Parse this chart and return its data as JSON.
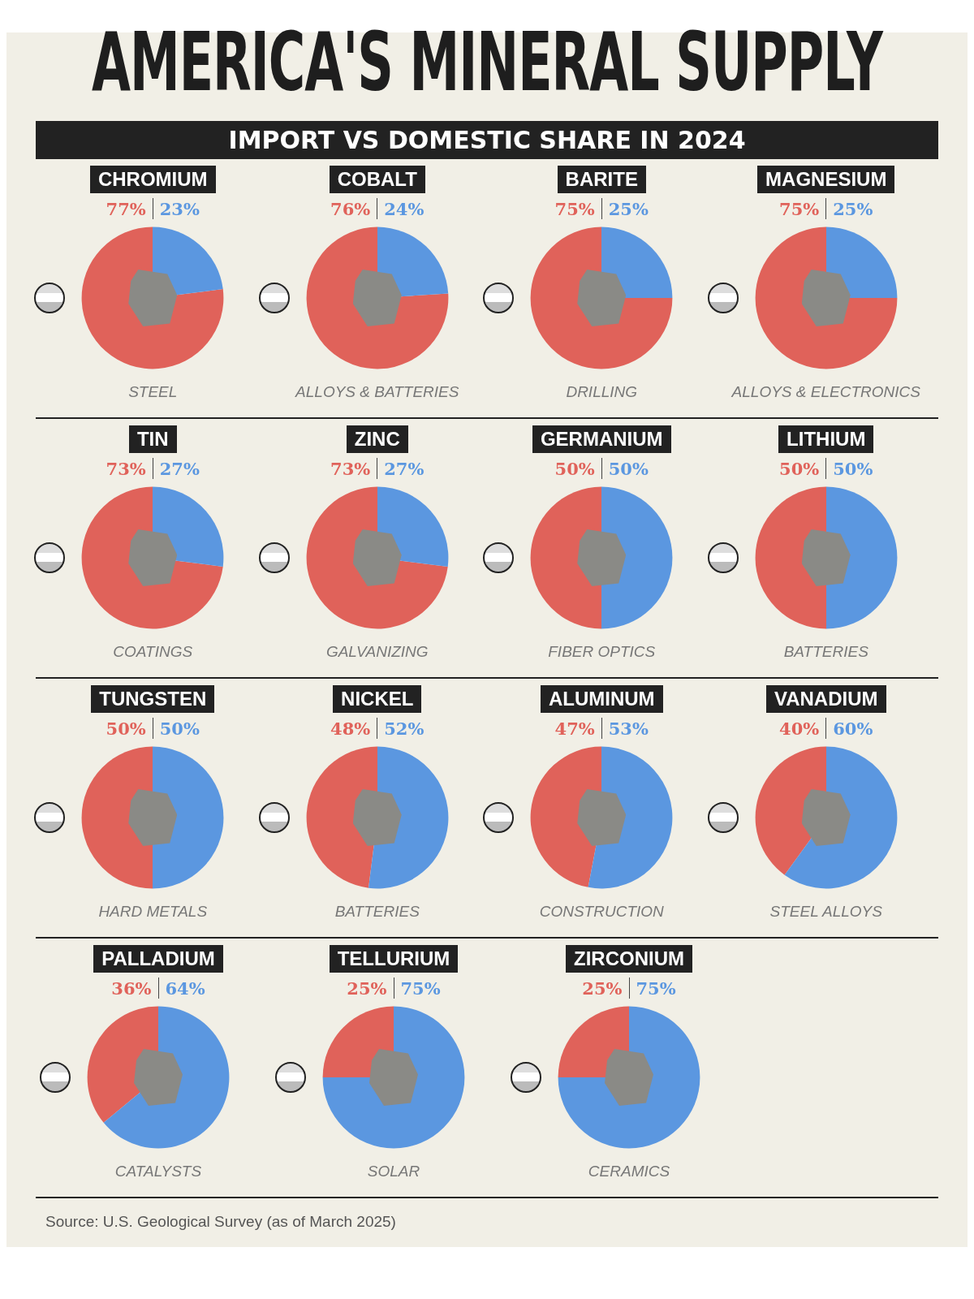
{
  "chart_data": [
    {
      "type": "other",
      "title": "AMERICA'S MINERAL SUPPLY",
      "subtitle": "IMPORT VS DOMESTIC SHARE IN 2024",
      "annotations": [
        "Source: U.S. Geological Survey (as of March 2025)"
      ]
    },
    {
      "type": "pie",
      "title": "CHROMIUM",
      "subtitle": "STEEL",
      "categories": [
        null,
        null
      ],
      "values": [
        77,
        23
      ],
      "value_labels": [
        "77%",
        "23%"
      ],
      "colors": [
        "#e0625a",
        "#5b97e0"
      ]
    },
    {
      "type": "pie",
      "title": "COBALT",
      "subtitle": "ALLOYS & BATTERIES",
      "categories": [
        null,
        null
      ],
      "values": [
        76,
        24
      ],
      "value_labels": [
        "76%",
        "24%"
      ],
      "colors": [
        "#e0625a",
        "#5b97e0"
      ]
    },
    {
      "type": "pie",
      "title": "BARITE",
      "subtitle": "DRILLING",
      "categories": [
        null,
        null
      ],
      "values": [
        75,
        25
      ],
      "value_labels": [
        "75%",
        "25%"
      ],
      "colors": [
        "#e0625a",
        "#5b97e0"
      ]
    },
    {
      "type": "pie",
      "title": "MAGNESIUM",
      "subtitle": "ALLOYS & ELECTRONICS",
      "categories": [
        null,
        null
      ],
      "values": [
        75,
        25
      ],
      "value_labels": [
        "75%",
        "25%"
      ],
      "colors": [
        "#e0625a",
        "#5b97e0"
      ]
    },
    {
      "type": "pie",
      "title": "TIN",
      "subtitle": "COATINGS",
      "categories": [
        null,
        null
      ],
      "values": [
        73,
        27
      ],
      "value_labels": [
        "73%",
        "27%"
      ],
      "colors": [
        "#e0625a",
        "#5b97e0"
      ]
    },
    {
      "type": "pie",
      "title": "ZINC",
      "subtitle": "GALVANIZING",
      "categories": [
        null,
        null
      ],
      "values": [
        73,
        27
      ],
      "value_labels": [
        "73%",
        "27%"
      ],
      "colors": [
        "#e0625a",
        "#5b97e0"
      ]
    },
    {
      "type": "pie",
      "title": "GERMANIUM",
      "subtitle": "FIBER OPTICS",
      "categories": [
        null,
        null
      ],
      "values": [
        50,
        50
      ],
      "value_labels": [
        "50%",
        "50%"
      ],
      "colors": [
        "#e0625a",
        "#5b97e0"
      ]
    },
    {
      "type": "pie",
      "title": "LITHIUM",
      "subtitle": "BATTERIES",
      "categories": [
        null,
        null
      ],
      "values": [
        50,
        50
      ],
      "value_labels": [
        "50%",
        "50%"
      ],
      "colors": [
        "#e0625a",
        "#5b97e0"
      ]
    },
    {
      "type": "pie",
      "title": "TUNGSTEN",
      "subtitle": "HARD METALS",
      "categories": [
        null,
        null
      ],
      "values": [
        50,
        50
      ],
      "value_labels": [
        "50%",
        "50%"
      ],
      "colors": [
        "#e0625a",
        "#5b97e0"
      ]
    },
    {
      "type": "pie",
      "title": "NICKEL",
      "subtitle": "BATTERIES",
      "categories": [
        null,
        null
      ],
      "values": [
        48,
        52
      ],
      "value_labels": [
        "48%",
        "52%"
      ],
      "colors": [
        "#e0625a",
        "#5b97e0"
      ]
    },
    {
      "type": "pie",
      "title": "ALUMINUM",
      "subtitle": "CONSTRUCTION",
      "categories": [
        null,
        null
      ],
      "values": [
        47,
        53
      ],
      "value_labels": [
        "47%",
        "53%"
      ],
      "colors": [
        "#e0625a",
        "#5b97e0"
      ]
    },
    {
      "type": "pie",
      "title": "VANADIUM",
      "subtitle": "STEEL ALLOYS",
      "categories": [
        null,
        null
      ],
      "values": [
        40,
        60
      ],
      "value_labels": [
        "40%",
        "60%"
      ],
      "colors": [
        "#e0625a",
        "#5b97e0"
      ]
    },
    {
      "type": "pie",
      "title": "PALLADIUM",
      "subtitle": "CATALYSTS",
      "categories": [
        null,
        null
      ],
      "values": [
        36,
        64
      ],
      "value_labels": [
        "36%",
        "64%"
      ],
      "colors": [
        "#e0625a",
        "#5b97e0"
      ]
    },
    {
      "type": "pie",
      "title": "TELLURIUM",
      "subtitle": "SOLAR",
      "categories": [
        null,
        null
      ],
      "values": [
        25,
        75
      ],
      "value_labels": [
        "25%",
        "75%"
      ],
      "colors": [
        "#e0625a",
        "#5b97e0"
      ]
    },
    {
      "type": "pie",
      "title": "ZIRCONIUM",
      "subtitle": "CERAMICS",
      "categories": [
        null,
        null
      ],
      "values": [
        25,
        75
      ],
      "value_labels": [
        "25%",
        "75%"
      ],
      "colors": [
        "#e0625a",
        "#5b97e0"
      ]
    }
  ]
}
